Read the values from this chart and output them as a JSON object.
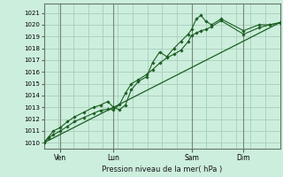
{
  "background_color": "#cceedd",
  "grid_color": "#aaccbb",
  "line_color": "#1a5e20",
  "ylim": [
    1009.5,
    1021.8
  ],
  "yticks": [
    1010,
    1011,
    1012,
    1013,
    1014,
    1015,
    1016,
    1017,
    1018,
    1019,
    1020,
    1021
  ],
  "xlabel": "Pression niveau de la mer( hPa )",
  "day_positions": [
    0.07,
    0.295,
    0.625,
    0.845
  ],
  "day_labels": [
    "Ven",
    "Lun",
    "Sam",
    "Dim"
  ],
  "line1_x": [
    0.0,
    0.02,
    0.04,
    0.07,
    0.1,
    0.13,
    0.17,
    0.21,
    0.24,
    0.27,
    0.295,
    0.32,
    0.345,
    0.37,
    0.4,
    0.435,
    0.46,
    0.49,
    0.52,
    0.55,
    0.58,
    0.61,
    0.625,
    0.645,
    0.665,
    0.685,
    0.71,
    0.75,
    0.845,
    0.91,
    0.955,
    1.0
  ],
  "line1_y": [
    1010.0,
    1010.4,
    1010.7,
    1011.0,
    1011.4,
    1011.8,
    1012.15,
    1012.5,
    1012.75,
    1012.85,
    1012.8,
    1013.25,
    1014.2,
    1015.0,
    1015.35,
    1015.8,
    1016.2,
    1016.75,
    1017.2,
    1017.5,
    1017.85,
    1018.55,
    1019.1,
    1019.3,
    1019.5,
    1019.6,
    1019.85,
    1020.35,
    1019.2,
    1019.75,
    1020.0,
    1020.15
  ],
  "line2_x": [
    0.0,
    0.02,
    0.04,
    0.07,
    0.1,
    0.13,
    0.17,
    0.21,
    0.24,
    0.27,
    0.295,
    0.32,
    0.345,
    0.37,
    0.4,
    0.435,
    0.46,
    0.49,
    0.52,
    0.55,
    0.58,
    0.61,
    0.625,
    0.645,
    0.665,
    0.685,
    0.71,
    0.75,
    0.845,
    0.91,
    0.955,
    1.0
  ],
  "line2_y": [
    1010.0,
    1010.5,
    1011.0,
    1011.3,
    1011.8,
    1012.2,
    1012.6,
    1013.0,
    1013.2,
    1013.5,
    1013.0,
    1012.8,
    1013.2,
    1014.5,
    1015.2,
    1015.6,
    1016.8,
    1017.7,
    1017.3,
    1018.0,
    1018.6,
    1019.2,
    1019.6,
    1020.5,
    1020.8,
    1020.3,
    1020.0,
    1020.5,
    1019.5,
    1020.0,
    1020.0,
    1020.2
  ],
  "trend_x": [
    0.0,
    1.0
  ],
  "trend_y": [
    1010.0,
    1020.2
  ],
  "xlim": [
    0.0,
    1.0
  ]
}
